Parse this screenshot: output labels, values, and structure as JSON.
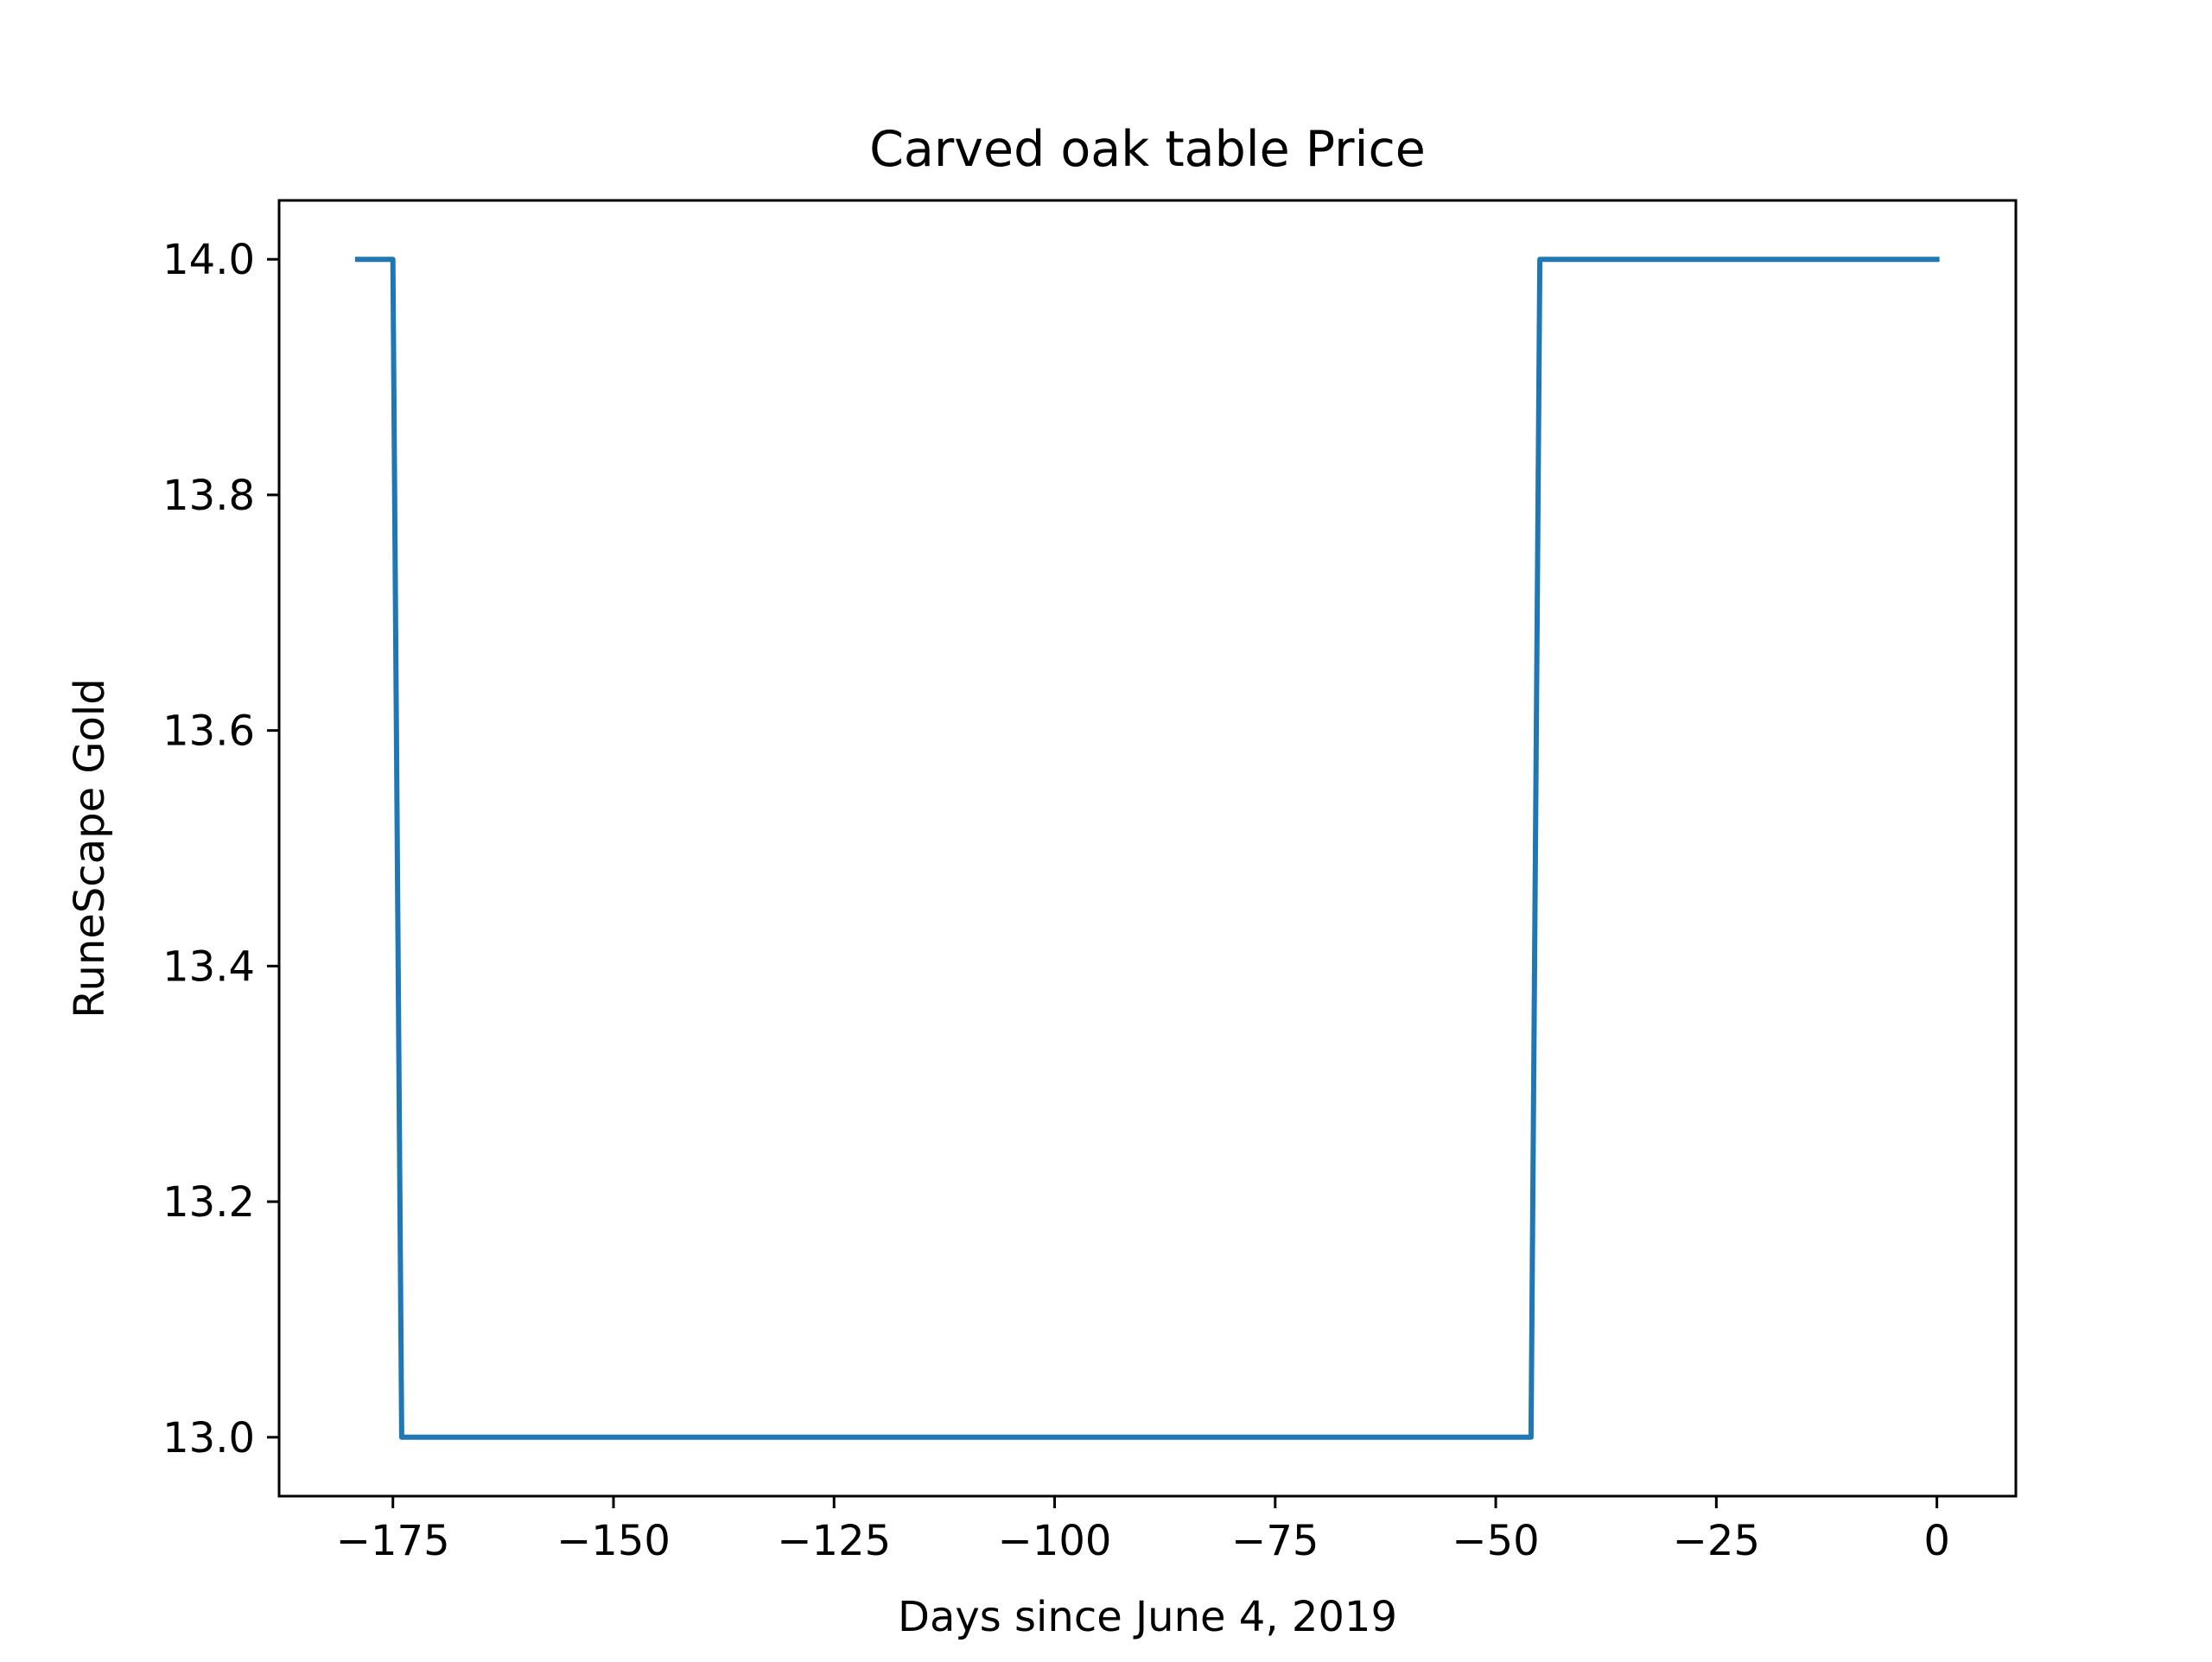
{
  "chart_data": {
    "type": "line",
    "title": "Carved oak table Price",
    "xlabel": "Days since June 4, 2019",
    "ylabel": "RuneScape Gold",
    "xlim": [
      -187.9,
      8.95
    ],
    "ylim": [
      12.95,
      14.05
    ],
    "xticks": [
      -175,
      -150,
      -125,
      -100,
      -75,
      -50,
      -25,
      0
    ],
    "xtick_labels": [
      "−175",
      "−150",
      "−125",
      "−100",
      "−75",
      "−50",
      "−25",
      "0"
    ],
    "yticks": [
      13.0,
      13.2,
      13.4,
      13.6,
      13.8,
      14.0
    ],
    "ytick_labels": [
      "13.0",
      "13.2",
      "13.4",
      "13.6",
      "13.8",
      "14.0"
    ],
    "grid": false,
    "series": [
      {
        "color": "#1f77b4",
        "x": [
          -179,
          -178,
          -177,
          -176,
          -175,
          -174,
          -46,
          -45,
          -44,
          0
        ],
        "y": [
          14,
          14,
          14,
          14,
          14,
          13,
          13,
          14,
          14,
          14
        ]
      }
    ]
  }
}
